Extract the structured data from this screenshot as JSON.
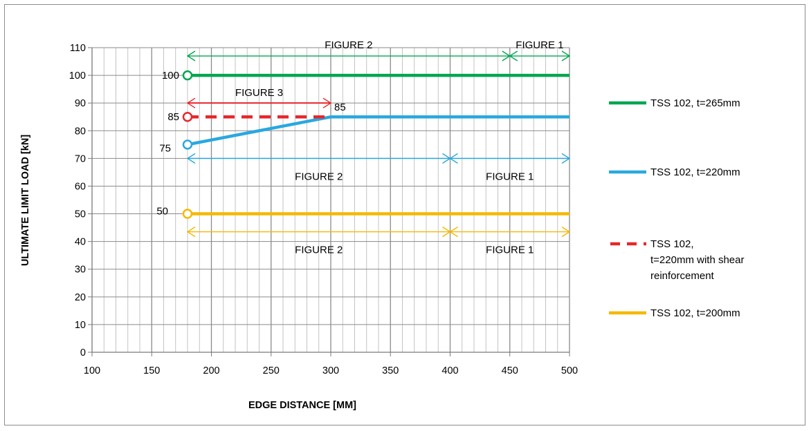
{
  "chart_data": {
    "type": "line",
    "xlabel": "EDGE DISTANCE [MM]",
    "ylabel": "ULTIMATE LIMIT LOAD [kN]",
    "xlim": [
      100,
      500
    ],
    "ylim": [
      0,
      110
    ],
    "x_ticks": [
      100,
      150,
      200,
      250,
      300,
      350,
      400,
      450,
      500
    ],
    "y_ticks": [
      0,
      10,
      20,
      30,
      40,
      50,
      60,
      70,
      80,
      90,
      100,
      110
    ],
    "grid": "minor vertical every 10, major every 50; horizontal every 10",
    "legend_position": "right",
    "series": [
      {
        "name": "TSS 102, t=265mm",
        "color": "#00a651",
        "style": "solid",
        "x": [
          180,
          500
        ],
        "y": [
          100,
          100
        ]
      },
      {
        "name": "TSS 102, t=220mm",
        "color": "#29a8e0",
        "style": "solid",
        "x": [
          180,
          300,
          500
        ],
        "y": [
          75,
          85,
          85
        ]
      },
      {
        "name": "TSS 102, t=220mm with shear reinforcement",
        "color": "#e8262b",
        "style": "dashed",
        "x": [
          180,
          300
        ],
        "y": [
          85,
          85
        ]
      },
      {
        "name": "TSS 102, t=200mm",
        "color": "#f5b800",
        "style": "solid",
        "x": [
          180,
          500
        ],
        "y": [
          50,
          50
        ]
      }
    ],
    "point_labels": [
      {
        "text": "100",
        "x": 180,
        "y": 100,
        "color": "#00a651"
      },
      {
        "text": "85",
        "x": 180,
        "y": 85,
        "color": "#e8262b"
      },
      {
        "text": "75",
        "x": 180,
        "y": 75,
        "color": "#29a8e0"
      },
      {
        "text": "85",
        "x": 300,
        "y": 85
      },
      {
        "text": "50",
        "x": 180,
        "y": 50
      }
    ],
    "ranges": [
      {
        "label": "FIGURE 2",
        "x_from": 180,
        "x_to": 450,
        "y": 107,
        "color": "#00a651"
      },
      {
        "label": "FIGURE 1",
        "x_from": 450,
        "x_to": 500,
        "y": 107,
        "color": "#00a651"
      },
      {
        "label": "FIGURE 3",
        "x_from": 180,
        "x_to": 300,
        "y": 90,
        "color": "#e8262b"
      },
      {
        "label": "FIGURE 2",
        "x_from": 180,
        "x_to": 400,
        "y": 70,
        "color": "#29a8e0"
      },
      {
        "label": "FIGURE 1",
        "x_from": 400,
        "x_to": 500,
        "y": 70,
        "color": "#29a8e0"
      },
      {
        "label": "FIGURE 2",
        "x_from": 180,
        "x_to": 400,
        "y": 43.5,
        "color": "#f5b800"
      },
      {
        "label": "FIGURE 1",
        "x_from": 400,
        "x_to": 500,
        "y": 43.5,
        "color": "#f5b800"
      }
    ],
    "legend": [
      {
        "lines": [
          "TSS 102, t=265mm"
        ],
        "color": "#00a651",
        "style": "solid"
      },
      {
        "lines": [
          "TSS 102, t=220mm"
        ],
        "color": "#29a8e0",
        "style": "solid"
      },
      {
        "lines": [
          "TSS 102,",
          "t=220mm with shear",
          "reinforcement"
        ],
        "color": "#e8262b",
        "style": "dashed"
      },
      {
        "lines": [
          "TSS 102, t=200mm"
        ],
        "color": "#f5b800",
        "style": "solid"
      }
    ]
  }
}
